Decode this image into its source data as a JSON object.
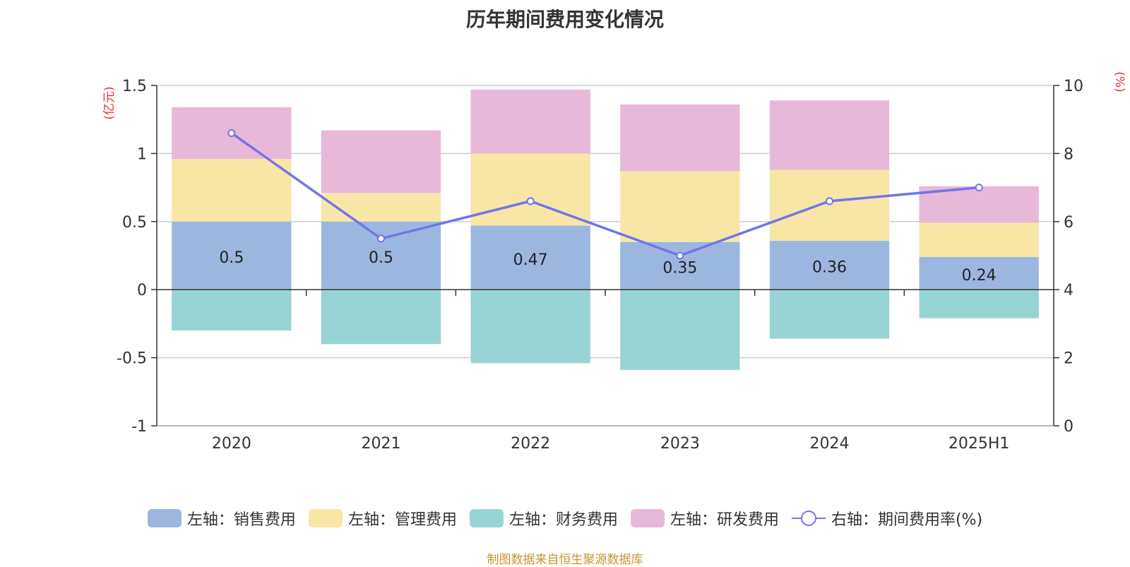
{
  "chart_data": {
    "type": "bar",
    "title": "历年期间费用变化情况",
    "left_unit": "(亿元)",
    "right_unit": "(%)",
    "categories": [
      "2020",
      "2021",
      "2022",
      "2023",
      "2024",
      "2025H1"
    ],
    "left_axis": {
      "ylim": [
        -1,
        1.5
      ],
      "ticks": [
        -1,
        -0.5,
        0,
        0.5,
        1,
        1.5
      ],
      "tick_labels": [
        "-1",
        "-0.5",
        "0",
        "0.5",
        "1",
        "1.5"
      ]
    },
    "right_axis": {
      "ylim": [
        0,
        10
      ],
      "ticks": [
        0,
        2,
        4,
        6,
        8,
        10
      ],
      "tick_labels": [
        "0",
        "2",
        "4",
        "6",
        "8",
        "10"
      ]
    },
    "grid": true,
    "legend_position": "bottom",
    "stacked_series": [
      {
        "name": "左轴：销售费用",
        "color": "#9bb7e0",
        "values": [
          0.5,
          0.5,
          0.47,
          0.35,
          0.36,
          0.24
        ],
        "labels": [
          "0.5",
          "0.5",
          "0.47",
          "0.35",
          "0.36",
          "0.24"
        ]
      },
      {
        "name": "左轴：管理费用",
        "color": "#f8e6a6",
        "values": [
          0.46,
          0.21,
          0.53,
          0.52,
          0.52,
          0.25
        ]
      },
      {
        "name": "左轴：财务费用",
        "color": "#98d4d4",
        "values": [
          -0.3,
          -0.4,
          -0.54,
          -0.59,
          -0.36,
          -0.21
        ]
      },
      {
        "name": "左轴：研发费用",
        "color": "#e8b8d8",
        "values": [
          0.38,
          0.46,
          0.47,
          0.49,
          0.51,
          0.27
        ]
      }
    ],
    "line_series": {
      "name": "右轴：期间费用率(%)",
      "color": "#7275e8",
      "values": [
        8.6,
        5.5,
        6.6,
        5.0,
        6.6,
        7.0
      ]
    }
  },
  "source_note": "制图数据来自恒生聚源数据库"
}
